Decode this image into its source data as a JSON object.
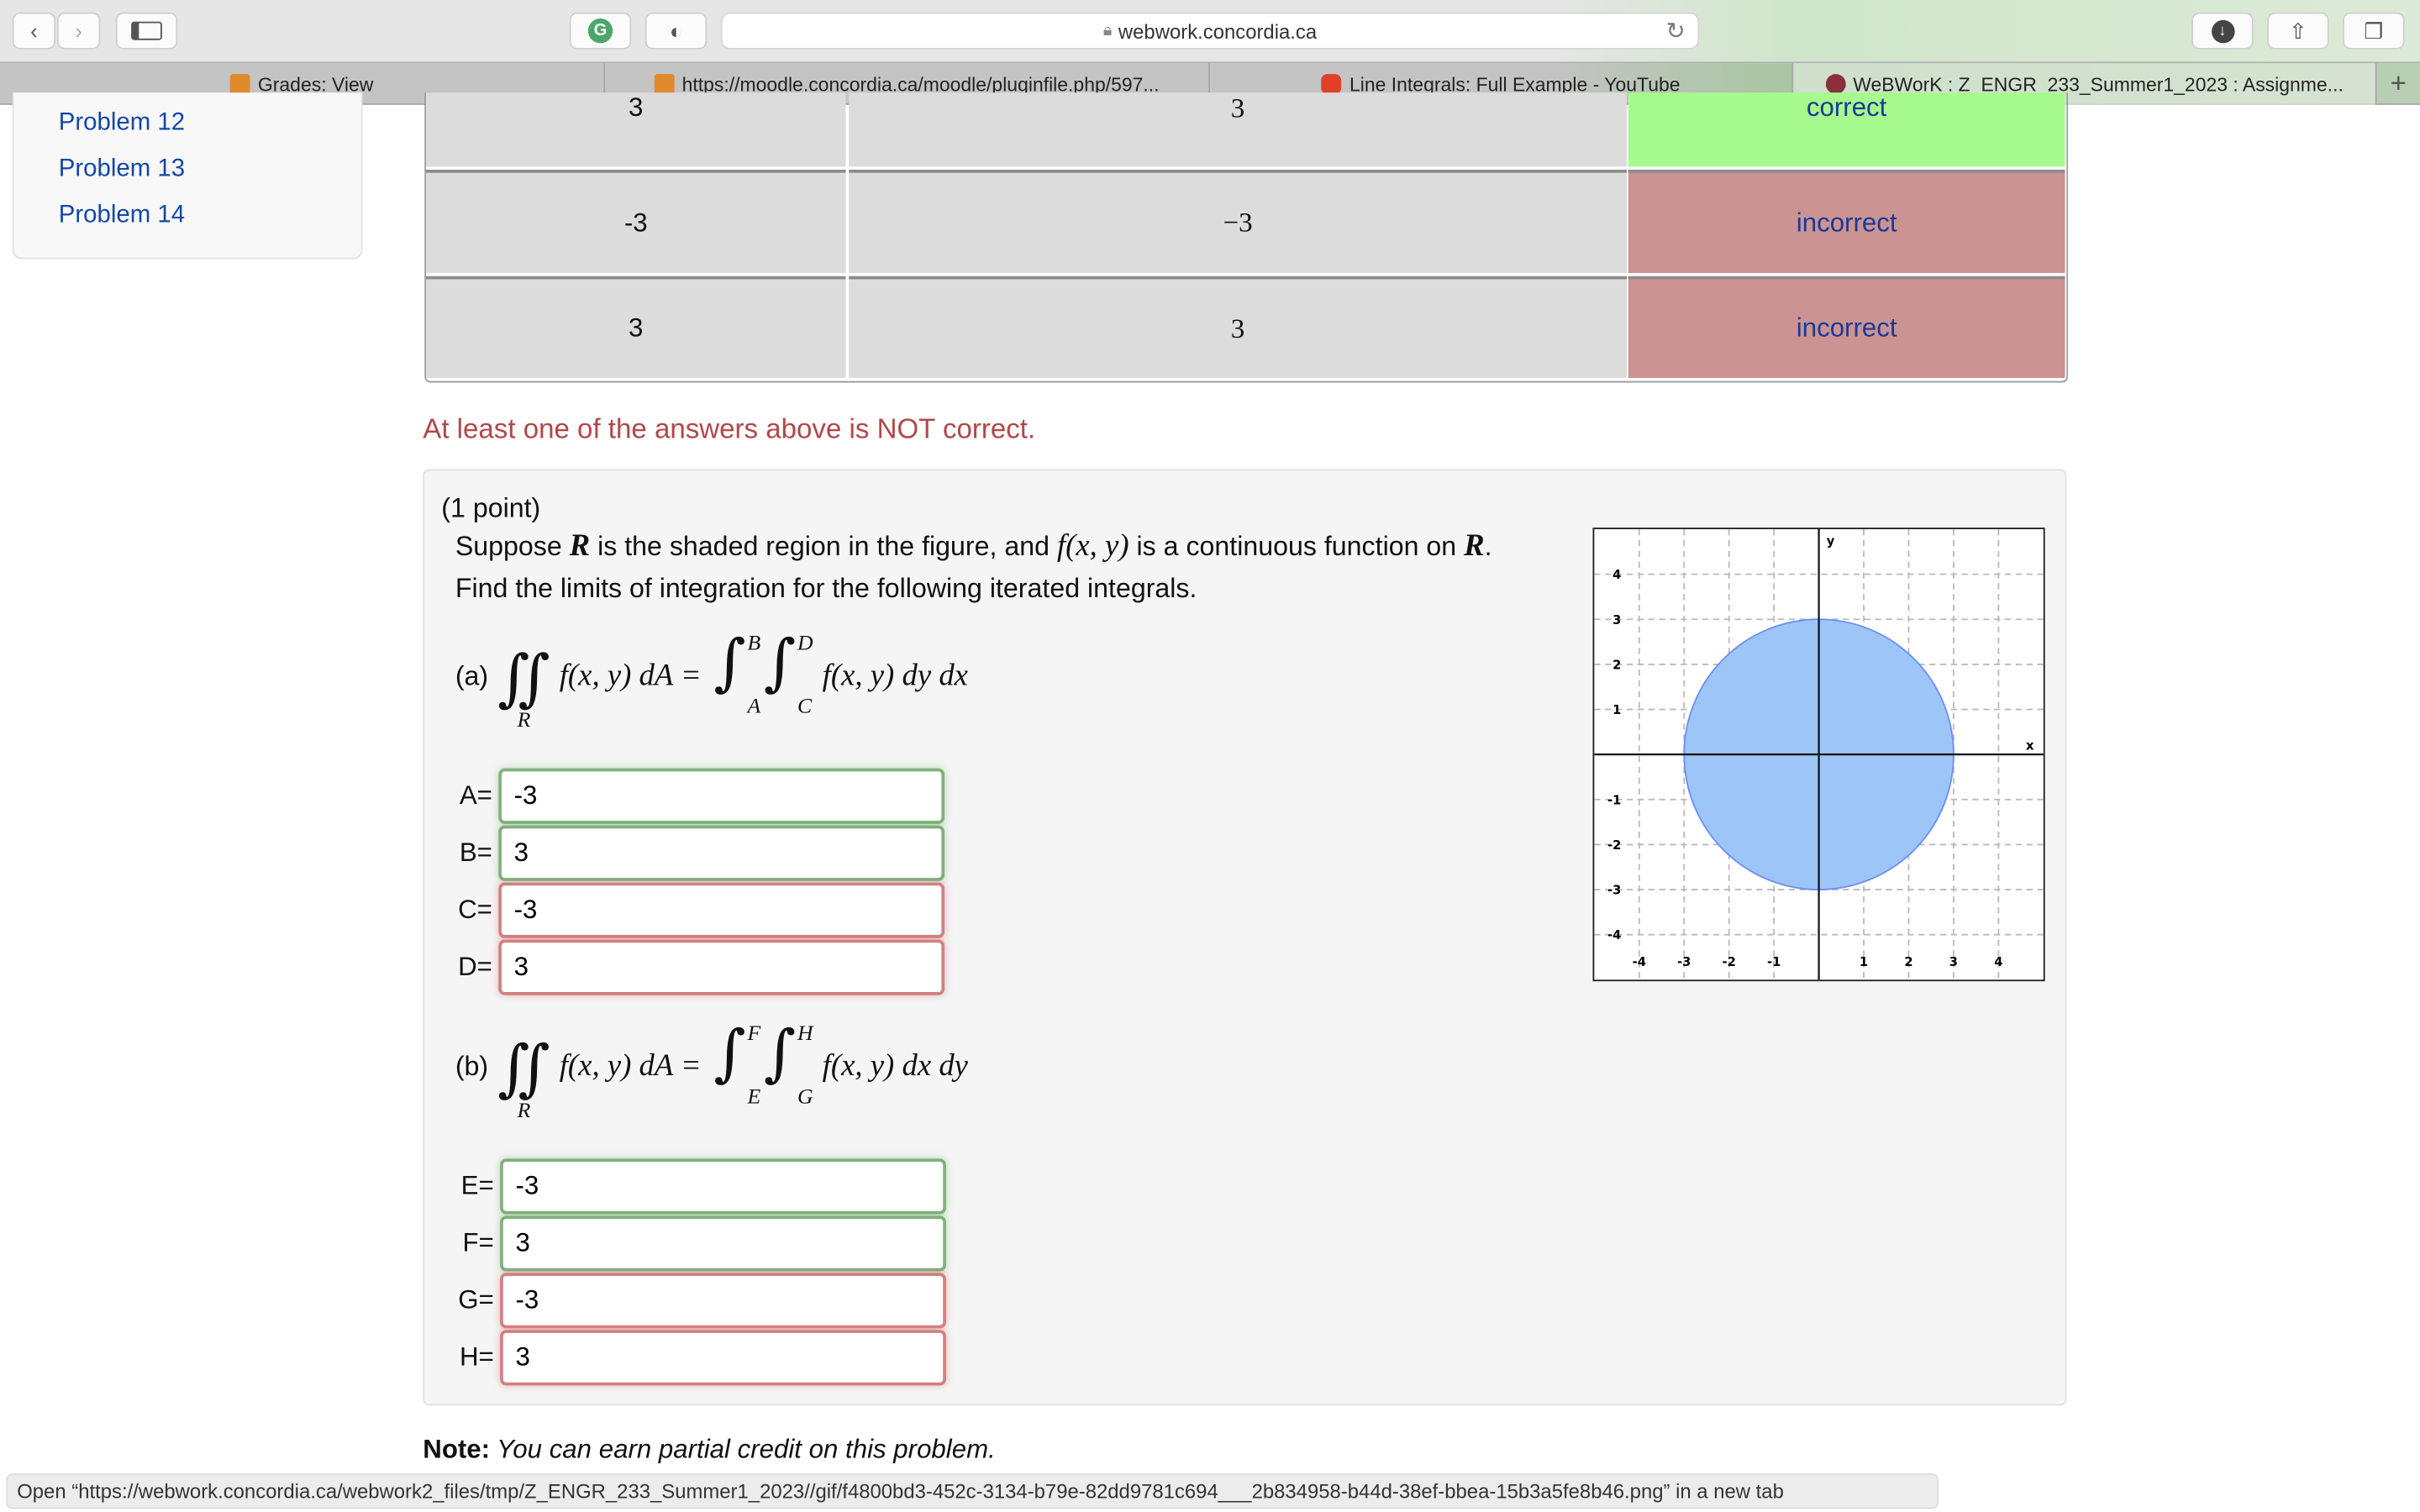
{
  "browser": {
    "url": "webwork.concordia.ca",
    "tabs": [
      {
        "label": "Grades: View",
        "icon": "moodle-icon"
      },
      {
        "label": "https://moodle.concordia.ca/moodle/pluginfile.php/597...",
        "icon": "moodle-icon"
      },
      {
        "label": "Line Integrals: Full Example - YouTube",
        "icon": "youtube-icon"
      },
      {
        "label": "WeBWorK : Z_ENGR_233_Summer1_2023 : Assignme...",
        "icon": "concordia-icon",
        "active": true
      }
    ],
    "new_tab": "+",
    "status_text": "Open “https://webwork.concordia.ca/webwork2_files/tmp/Z_ENGR_233_Summer1_2023//gif/f4800bd3-452c-3134-b79e-82dd9781c694___2b834958-b44d-38ef-bbea-15b3a5fe8b46.png” in a new tab"
  },
  "sidebar": {
    "items": [
      {
        "label": "Problem 12"
      },
      {
        "label": "Problem 13"
      },
      {
        "label": "Problem 14"
      }
    ]
  },
  "results": {
    "rows": [
      {
        "entered": "3",
        "preview": "3",
        "result": "correct",
        "status": "correct"
      },
      {
        "entered": "-3",
        "preview": "−3",
        "result": "incorrect",
        "status": "incorrect"
      },
      {
        "entered": "3",
        "preview": "3",
        "result": "incorrect",
        "status": "incorrect"
      }
    ],
    "message": "At least one of the answers above is NOT correct."
  },
  "problem": {
    "points": "(1 point)",
    "line1": {
      "a": "Suppose ",
      "R": "R",
      "b": " is the shaded region in the figure, and ",
      "f": "f(x, y)",
      "c": " is a continuous function on ",
      "R2": "R",
      "d": "."
    },
    "line2": "Find the limits of integration for the following iterated integrals.",
    "part_a": {
      "label": "(a)",
      "region": "R",
      "lhs": "f(x, y) dA =",
      "lower_outer": "A",
      "upper_outer": "B",
      "lower_inner": "C",
      "upper_inner": "D",
      "rhs": "f(x, y) dy dx"
    },
    "part_b": {
      "label": "(b)",
      "region": "R",
      "lhs": "f(x, y) dA =",
      "lower_outer": "E",
      "upper_outer": "F",
      "lower_inner": "G",
      "upper_inner": "H",
      "rhs": "f(x, y) dx dy"
    },
    "answers": [
      {
        "label": "A=",
        "value": "-3",
        "status": "correct"
      },
      {
        "label": "B=",
        "value": "3",
        "status": "correct"
      },
      {
        "label": "C=",
        "value": "-3",
        "status": "incorrect"
      },
      {
        "label": "D=",
        "value": "3",
        "status": "incorrect"
      },
      {
        "label": "E=",
        "value": "-3",
        "status": "correct"
      },
      {
        "label": "F=",
        "value": "3",
        "status": "correct"
      },
      {
        "label": "G=",
        "value": "-3",
        "status": "incorrect"
      },
      {
        "label": "H=",
        "value": "3",
        "status": "incorrect"
      }
    ],
    "note_bold": "Note:",
    "note_text": " You can earn partial credit on this problem."
  },
  "graph": {
    "xlim": [
      -5,
      5
    ],
    "ylim": [
      -5,
      5
    ],
    "xticks": [
      "-4",
      "-3",
      "-2",
      "-1",
      "1",
      "2",
      "3",
      "4"
    ],
    "yticks": [
      "4",
      "3",
      "2",
      "1",
      "-1",
      "-2",
      "-3",
      "-4"
    ],
    "xlabel": "x",
    "ylabel": "y",
    "region": {
      "shape": "circle",
      "center": [
        0,
        0
      ],
      "radius": 3,
      "fill": "#9ec5f7",
      "stroke": "#6f8ff5"
    }
  },
  "colors": {
    "correct": "#a6fa8e",
    "incorrect": "#cc9393",
    "warning": "#b14848",
    "link": "#1148a8"
  }
}
